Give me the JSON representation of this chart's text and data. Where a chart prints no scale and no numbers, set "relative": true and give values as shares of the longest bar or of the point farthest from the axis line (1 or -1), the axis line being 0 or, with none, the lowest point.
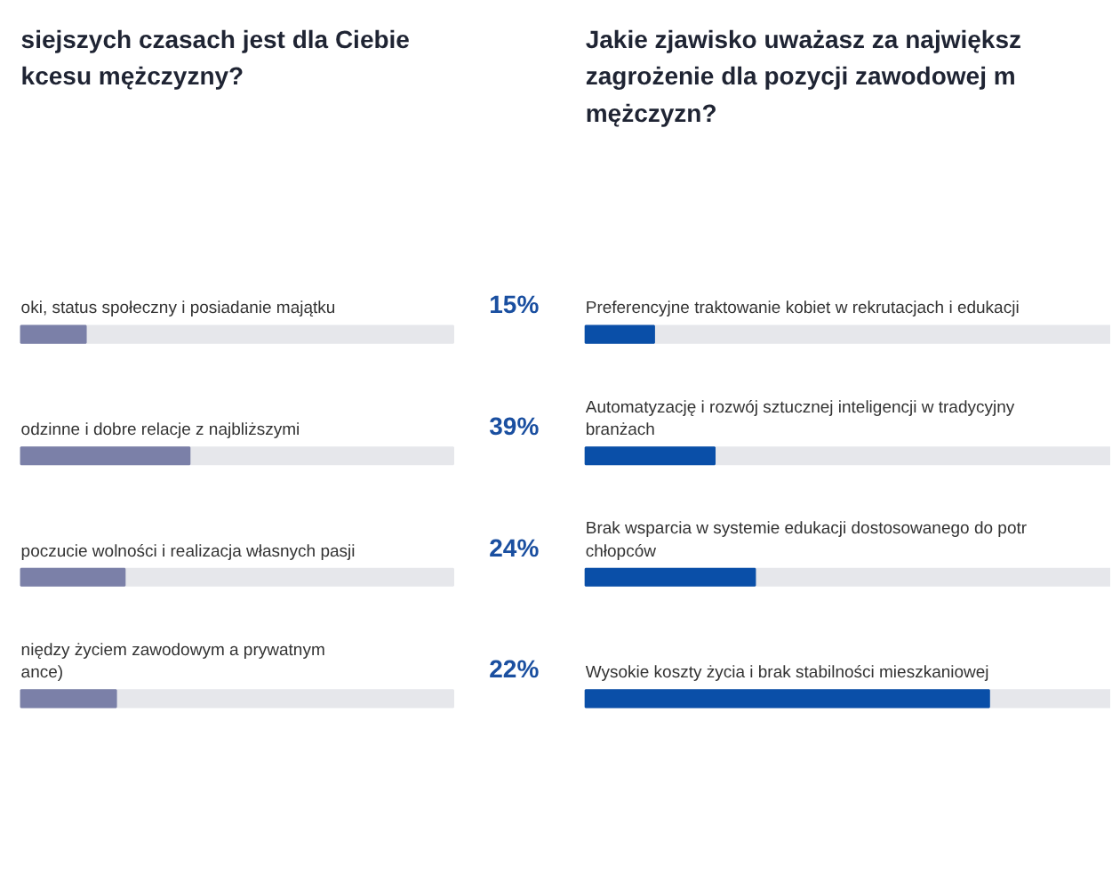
{
  "chart_data": [
    {
      "type": "bar",
      "orientation": "horizontal",
      "title": "siejszych czasach jest dla Ciebie\nkcesu mężczyzny?",
      "categories": [
        "oki, status społeczny i posiadanie majątku",
        "odzinne i dobre relacje z najbliższymi",
        "poczucie wolności i realizacja własnych pasji",
        "niędzy życiem zawodowym a prywatnym\nance)"
      ],
      "values": [
        15,
        39,
        24,
        22
      ],
      "color": "#7b80a8",
      "value_labels": [
        "15%",
        "39%",
        "24%",
        "22%"
      ]
    },
    {
      "type": "bar",
      "orientation": "horizontal",
      "title": "Jakie zjawisko uważasz za największ\nzagrożenie dla pozycji zawodowej m\nmężczyzn?",
      "categories": [
        "Preferencyjne traktowanie kobiet w rekrutacjach i edukacji",
        "Automatyzację i rozwój sztucznej inteligencji w tradycyjny\nbranżach",
        "Brak wsparcia w systemie edukacji dostosowanego do potr\nchłopców",
        "Wysokie koszty życia i brak stabilności mieszkaniowej"
      ],
      "values": [
        0.17,
        0.32,
        0.42,
        1.0
      ],
      "color": "#0a4fa8",
      "relative": true
    }
  ]
}
